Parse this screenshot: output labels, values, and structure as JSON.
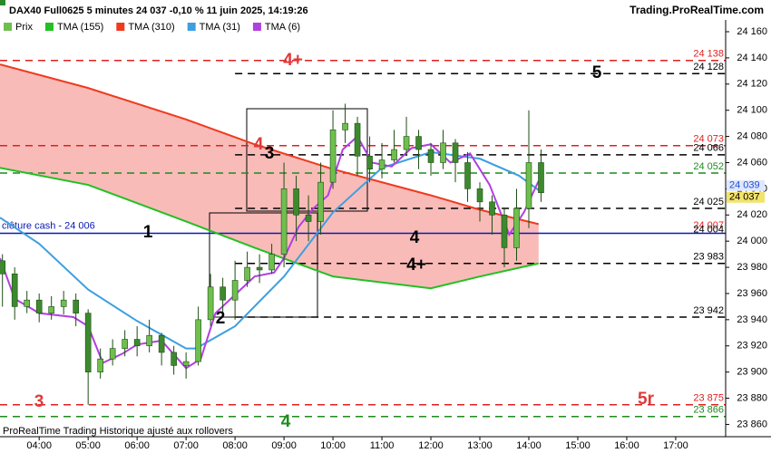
{
  "chart_data": {
    "type": "candlestick",
    "title": "DAX40 Full0625 5 minutes 24 037 -0,10 % 11 juin 2025, 14:19:26",
    "source": "Trading.ProRealTime.com",
    "footer": "ProRealTime Trading  Historique ajusté aux rollovers",
    "xlim": [
      3.2,
      18.02
    ],
    "ylim": [
      23852,
      24169
    ],
    "xticks": [
      {
        "value": 4,
        "label": "04:00"
      },
      {
        "value": 5,
        "label": "05:00"
      },
      {
        "value": 6,
        "label": "06:00"
      },
      {
        "value": 7,
        "label": "07:00"
      },
      {
        "value": 8,
        "label": "08:00"
      },
      {
        "value": 9,
        "label": "09:00"
      },
      {
        "value": 10,
        "label": "10:00"
      },
      {
        "value": 11,
        "label": "11:00"
      },
      {
        "value": 12,
        "label": "12:00"
      },
      {
        "value": 13,
        "label": "13:00"
      },
      {
        "value": 14,
        "label": "14:00"
      },
      {
        "value": 15,
        "label": "15:00"
      },
      {
        "value": 16,
        "label": "16:00"
      },
      {
        "value": 17,
        "label": "17:00"
      }
    ],
    "yticks": [
      {
        "value": 23860,
        "label": "23 860"
      },
      {
        "value": 23880,
        "label": "23 880"
      },
      {
        "value": 23900,
        "label": "23 900"
      },
      {
        "value": 23920,
        "label": "23 920"
      },
      {
        "value": 23940,
        "label": "23 940"
      },
      {
        "value": 23960,
        "label": "23 960"
      },
      {
        "value": 23980,
        "label": "23 980"
      },
      {
        "value": 24000,
        "label": "24 000"
      },
      {
        "value": 24020,
        "label": "24 020"
      },
      {
        "value": 24040,
        "label": "24 040"
      },
      {
        "value": 24060,
        "label": "24 060"
      },
      {
        "value": 24080,
        "label": "24 080"
      },
      {
        "value": 24100,
        "label": "24 100"
      },
      {
        "value": 24120,
        "label": "24 120"
      },
      {
        "value": 24140,
        "label": "24 140"
      },
      {
        "value": 24160,
        "label": "24 160"
      }
    ],
    "price": {
      "name": "Prix",
      "up_color": "#6fbf4f",
      "down_color": "#3d8a2e",
      "x": [
        3.25,
        3.5,
        3.75,
        4.0,
        4.25,
        4.5,
        4.75,
        5.0,
        5.25,
        5.5,
        5.75,
        6.0,
        6.25,
        6.5,
        6.75,
        7.0,
        7.25,
        7.5,
        7.75,
        8.0,
        8.25,
        8.5,
        8.75,
        9.0,
        9.25,
        9.5,
        9.75,
        10.0,
        10.25,
        10.5,
        10.75,
        11.0,
        11.25,
        11.5,
        11.75,
        12.0,
        12.25,
        12.5,
        12.75,
        13.0,
        13.25,
        13.5,
        13.75,
        14.0,
        14.25
      ],
      "open": [
        23985,
        23975,
        23950,
        23955,
        23945,
        23950,
        23955,
        23945,
        23900,
        23910,
        23918,
        23925,
        23920,
        23928,
        23915,
        23905,
        23908,
        23940,
        23965,
        23955,
        23970,
        23980,
        23978,
        23990,
        24040,
        24020,
        24015,
        24045,
        24085,
        24090,
        24065,
        24055,
        24062,
        24070,
        24080,
        24070,
        24060,
        24075,
        24060,
        24040,
        24030,
        24020,
        23995,
        24025,
        24060
      ],
      "high": [
        23990,
        23980,
        23962,
        23960,
        23958,
        23962,
        23960,
        23948,
        23918,
        23925,
        23932,
        23935,
        23940,
        23930,
        23920,
        23915,
        23950,
        23975,
        23972,
        23985,
        23992,
        23990,
        23998,
        24060,
        24050,
        24035,
        24060,
        24100,
        24105,
        24095,
        24080,
        24075,
        24085,
        24095,
        24085,
        24075,
        24085,
        24078,
        24068,
        24045,
        24035,
        24025,
        24040,
        24100,
        24070
      ],
      "low": [
        23950,
        23940,
        23945,
        23938,
        23940,
        23944,
        23935,
        23875,
        23895,
        23905,
        23912,
        23912,
        23915,
        23905,
        23898,
        23895,
        23905,
        23935,
        23945,
        23940,
        23965,
        23968,
        23975,
        23980,
        24000,
        24000,
        24005,
        24040,
        24075,
        24050,
        24045,
        24048,
        24060,
        24065,
        24055,
        24050,
        24055,
        24045,
        24030,
        24015,
        24005,
        23980,
        23985,
        24010,
        24030
      ],
      "close": [
        23975,
        23950,
        23955,
        23945,
        23950,
        23955,
        23945,
        23900,
        23910,
        23918,
        23925,
        23920,
        23928,
        23915,
        23905,
        23908,
        23940,
        23965,
        23955,
        23970,
        23980,
        23978,
        23990,
        24040,
        24020,
        24015,
        24045,
        24085,
        24090,
        24065,
        24055,
        24062,
        24070,
        24080,
        24070,
        24060,
        24075,
        24060,
        24040,
        24030,
        24020,
        23995,
        24025,
        24060,
        24037
      ]
    },
    "series": [
      {
        "name": "TMA (155)",
        "color": "#22c022",
        "x": [
          3.2,
          5,
          7,
          8.4,
          10,
          12,
          13,
          14.2
        ],
        "values": [
          24056,
          24043,
          24015,
          23995,
          23973,
          23964,
          23973,
          23983
        ]
      },
      {
        "name": "TMA (310)",
        "color": "#f03a1e",
        "x": [
          3.2,
          5,
          7,
          8.4,
          10,
          12,
          13,
          14.2
        ],
        "values": [
          24135,
          24117,
          24093,
          24074,
          24055,
          24035,
          24024,
          24013
        ]
      },
      {
        "name": "TMA (31)",
        "color": "#3d9fe0",
        "x": [
          3.2,
          4,
          5,
          6,
          7,
          7.2,
          8,
          9,
          10,
          11,
          12,
          13,
          13.8,
          14.2
        ],
        "values": [
          24018,
          23998,
          23963,
          23939,
          23918,
          23918,
          23935,
          23973,
          24022,
          24056,
          24068,
          24063,
          24050,
          24039
        ]
      },
      {
        "name": "TMA (6)",
        "color": "#b040e0",
        "x": [
          3.2,
          3.5,
          4,
          4.7,
          5,
          5.3,
          5.7,
          6,
          6.5,
          7,
          7.3,
          7.6,
          8,
          8.4,
          8.8,
          9,
          9.3,
          9.6,
          9.9,
          10.2,
          10.5,
          10.8,
          11.2,
          11.6,
          12,
          12.4,
          12.8,
          13.2,
          13.6,
          13.9,
          14.2
        ],
        "values": [
          23987,
          23956,
          23945,
          23942,
          23935,
          23907,
          23914,
          23921,
          23924,
          23903,
          23910,
          23945,
          23959,
          23973,
          23976,
          23987,
          24011,
          24025,
          24035,
          24070,
          24080,
          24060,
          24057,
          24071,
          24074,
          24060,
          24067,
          24043,
          24005,
          24022,
          24046
        ]
      }
    ],
    "band_fill": "#f8b4b0",
    "levels": [
      {
        "value": 24138,
        "label": "24 138",
        "color": "#e02020",
        "style": "dashed",
        "from": 3.2
      },
      {
        "value": 24128,
        "label": "24 128",
        "color": "#000000",
        "style": "dashed",
        "from": 8
      },
      {
        "value": 24073,
        "label": "24 073",
        "color": "#e02020",
        "style": "dashed",
        "from": 3.2
      },
      {
        "value": 24066,
        "label": "24 066",
        "color": "#000000",
        "style": "dashed",
        "from": 8
      },
      {
        "value": 24052,
        "label": "24 052",
        "color": "#1f8a1f",
        "style": "dashed",
        "from": 3.2
      },
      {
        "value": 24025,
        "label": "24 025",
        "color": "#000000",
        "style": "dashed",
        "from": 8
      },
      {
        "value": 24007,
        "label": "24 007",
        "color": "#e02020",
        "style": "none",
        "from": 3.2
      },
      {
        "value": 24006,
        "label": "clôture cash -  24 006",
        "color": "#0a1ab0",
        "style": "solid",
        "from": 3.2
      },
      {
        "value": 24004,
        "label": "24 004",
        "color": "#000000",
        "style": "none",
        "from": 8
      },
      {
        "value": 23983,
        "label": "23 983",
        "color": "#000000",
        "style": "dashed",
        "from": 8
      },
      {
        "value": 23942,
        "label": "23 942",
        "color": "#000000",
        "style": "dashed",
        "from": 8
      },
      {
        "value": 23875,
        "label": "23 875",
        "color": "#e02020",
        "style": "dashed",
        "from": 3.2
      },
      {
        "value": 23866,
        "label": "23 866",
        "color": "#1f8a1f",
        "style": "dashed",
        "from": 3.2
      }
    ],
    "markers": [
      {
        "value": 24039,
        "label": "24 039",
        "color": "#1f4fd0",
        "background": "#dfe7ff"
      },
      {
        "value": 24037,
        "label": "24 037",
        "color": "#000000",
        "background": "#f3e36a"
      }
    ],
    "annotations": [
      {
        "text": "4+",
        "color": "#e03a3a"
      },
      {
        "text": "5",
        "color": "#000000"
      },
      {
        "text": "4",
        "color": "#e03a3a"
      },
      {
        "text": "3",
        "color": "#000000"
      },
      {
        "text": "1",
        "color": "#000000"
      },
      {
        "text": "4",
        "color": "#000000"
      },
      {
        "text": "4+",
        "color": "#000000"
      },
      {
        "text": "2",
        "color": "#000000"
      },
      {
        "text": "3",
        "color": "#e03a3a"
      },
      {
        "text": "5r",
        "color": "#e03a3a"
      },
      {
        "text": "4",
        "color": "#1f8a1f"
      }
    ]
  }
}
